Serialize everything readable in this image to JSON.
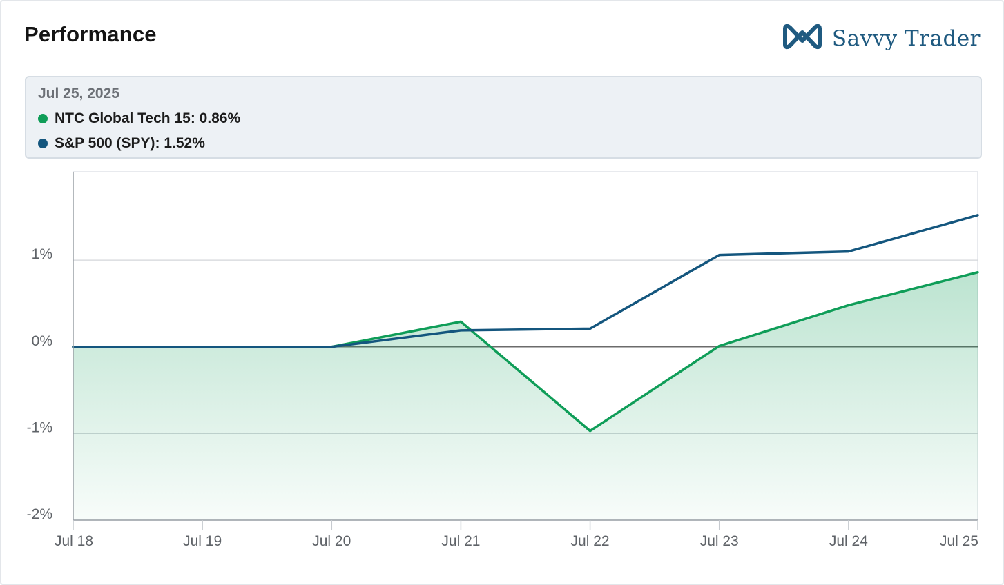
{
  "header": {
    "title": "Performance",
    "brand_name": "Savvy Trader",
    "brand_icon": "infinity-logo-icon",
    "brand_color": "#1f5a80"
  },
  "tooltip": {
    "date": "Jul 25, 2025",
    "rows": [
      {
        "label": "NTC Global Tech 15: 0.86%",
        "color": "#0f9d58"
      },
      {
        "label": "S&P 500 (SPY): 1.52%",
        "color": "#14567e"
      }
    ]
  },
  "chart_data": {
    "type": "line",
    "x": [
      "Jul 18",
      "Jul 19",
      "Jul 20",
      "Jul 21",
      "Jul 22",
      "Jul 23",
      "Jul 24",
      "Jul 25"
    ],
    "series": [
      {
        "name": "NTC Global Tech 15",
        "color": "#0f9d58",
        "fill": "area",
        "values": [
          0,
          0,
          0,
          0.29,
          -0.97,
          0.01,
          0.48,
          0.86
        ]
      },
      {
        "name": "S&P 500 (SPY)",
        "color": "#14567e",
        "values": [
          0,
          0,
          0,
          0.19,
          0.21,
          1.06,
          1.1,
          1.52
        ]
      }
    ],
    "y_ticks": [
      "1%",
      "0%",
      "-1%",
      "-2%"
    ],
    "y_tick_values": [
      1,
      0,
      -1,
      -2
    ],
    "ylim": [
      -2,
      2.02
    ],
    "grid": true,
    "xlabel": "",
    "ylabel": ""
  }
}
